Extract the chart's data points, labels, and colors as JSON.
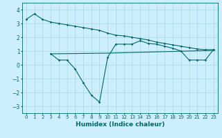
{
  "xlabel": "Humidex (Indice chaleur)",
  "bg_color": "#cceeff",
  "grid_color": "#aadddd",
  "line_color": "#006666",
  "xlim": [
    -0.5,
    23.5
  ],
  "ylim": [
    -3.5,
    4.5
  ],
  "yticks": [
    -3,
    -2,
    -1,
    0,
    1,
    2,
    3,
    4
  ],
  "xticks": [
    0,
    1,
    2,
    3,
    4,
    5,
    6,
    7,
    8,
    9,
    10,
    11,
    12,
    13,
    14,
    15,
    16,
    17,
    18,
    19,
    20,
    21,
    22,
    23
  ],
  "line1_x": [
    0,
    1,
    2,
    3,
    4,
    5,
    6,
    7,
    8,
    9,
    10,
    11,
    12,
    13,
    14,
    15,
    16,
    17,
    18,
    19,
    20,
    21,
    22,
    23
  ],
  "line1_y": [
    3.3,
    3.7,
    3.3,
    3.1,
    3.0,
    2.9,
    2.8,
    2.7,
    2.6,
    2.5,
    2.3,
    2.15,
    2.1,
    2.0,
    1.9,
    1.8,
    1.65,
    1.55,
    1.45,
    1.35,
    1.25,
    1.15,
    1.1,
    1.1
  ],
  "line2_x": [
    3,
    4,
    5,
    6,
    7,
    8,
    9,
    10,
    11,
    12,
    13,
    14,
    15,
    16,
    17,
    18,
    19,
    20,
    21,
    22,
    23
  ],
  "line2_y": [
    0.8,
    0.35,
    0.35,
    -0.3,
    -1.3,
    -2.2,
    -2.7,
    0.55,
    1.5,
    1.5,
    1.5,
    1.75,
    1.55,
    1.5,
    1.35,
    1.2,
    1.0,
    0.35,
    0.35,
    0.35,
    1.1
  ],
  "line3_x": [
    3,
    10,
    23
  ],
  "line3_y": [
    0.8,
    0.85,
    1.05
  ]
}
